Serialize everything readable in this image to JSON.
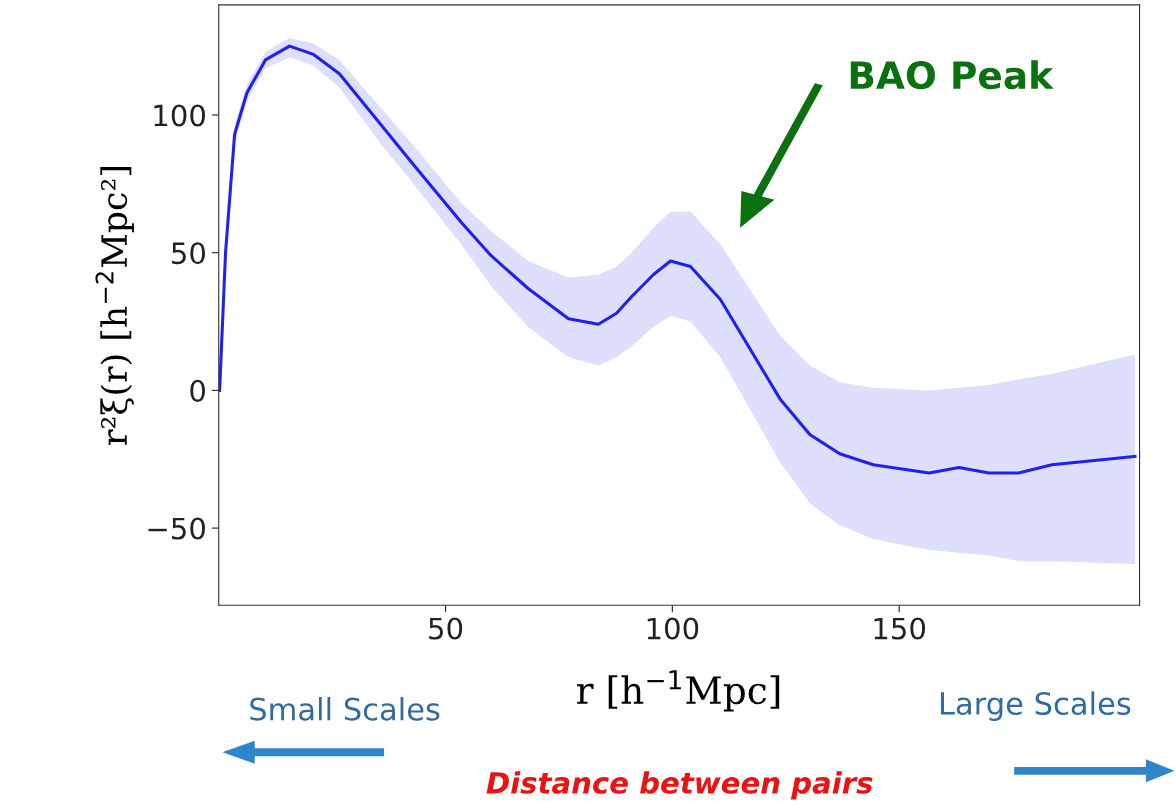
{
  "chart_data": {
    "type": "line",
    "xlabel": "r [h$^{−1}$Mpc]",
    "ylabel": "r²ξ(r) [h$^{−2}$Mpc²]",
    "series": [
      {
        "color": "#2020f0",
        "x": [
          0.2,
          1.5,
          3.5,
          6.2,
          10.3,
          15.6,
          20.9,
          26.6,
          35.5,
          42.9,
          53.5,
          60,
          68.2,
          77.1,
          83.7,
          87.7,
          91,
          95.8,
          99.6,
          104,
          110.6,
          123.7,
          130.3,
          136.9,
          144.3,
          156.6,
          163.2,
          169.8,
          176.3,
          183.7,
          202
        ],
        "values": [
          0,
          50,
          93,
          108,
          120,
          125,
          122,
          115,
          97,
          82,
          61,
          49,
          37,
          26,
          24,
          28,
          34,
          42,
          47,
          45,
          33,
          -3,
          -16,
          -23,
          -27,
          -30,
          -28,
          -30,
          -30,
          -27,
          -24
        ],
        "lower": [
          0,
          48,
          90,
          105,
          117,
          121,
          118,
          110,
          90,
          75,
          53,
          38,
          23,
          12,
          9,
          12,
          16,
          23,
          27,
          25,
          12,
          -26,
          -41,
          -49,
          -54,
          -58,
          -59,
          -60,
          -62,
          -62,
          -63
        ],
        "upper": [
          0,
          52,
          96,
          111,
          123,
          128,
          126,
          120,
          103,
          89,
          68,
          58,
          47,
          41,
          42,
          45,
          50,
          59,
          65,
          65,
          53,
          20,
          9,
          3,
          1,
          0,
          1,
          2,
          4,
          6,
          13
        ]
      }
    ],
    "xlim": [
      0,
      203
    ],
    "xticks": [
      50,
      100,
      150
    ],
    "ylim": [
      -78,
      140
    ],
    "yticks": [
      {
        "value": -50,
        "label": "−50"
      },
      0,
      50,
      100
    ],
    "grid": false,
    "annotations": [
      "BAO Peak",
      "Small Scales",
      "Large Scales",
      "Distance between pairs"
    ]
  }
}
